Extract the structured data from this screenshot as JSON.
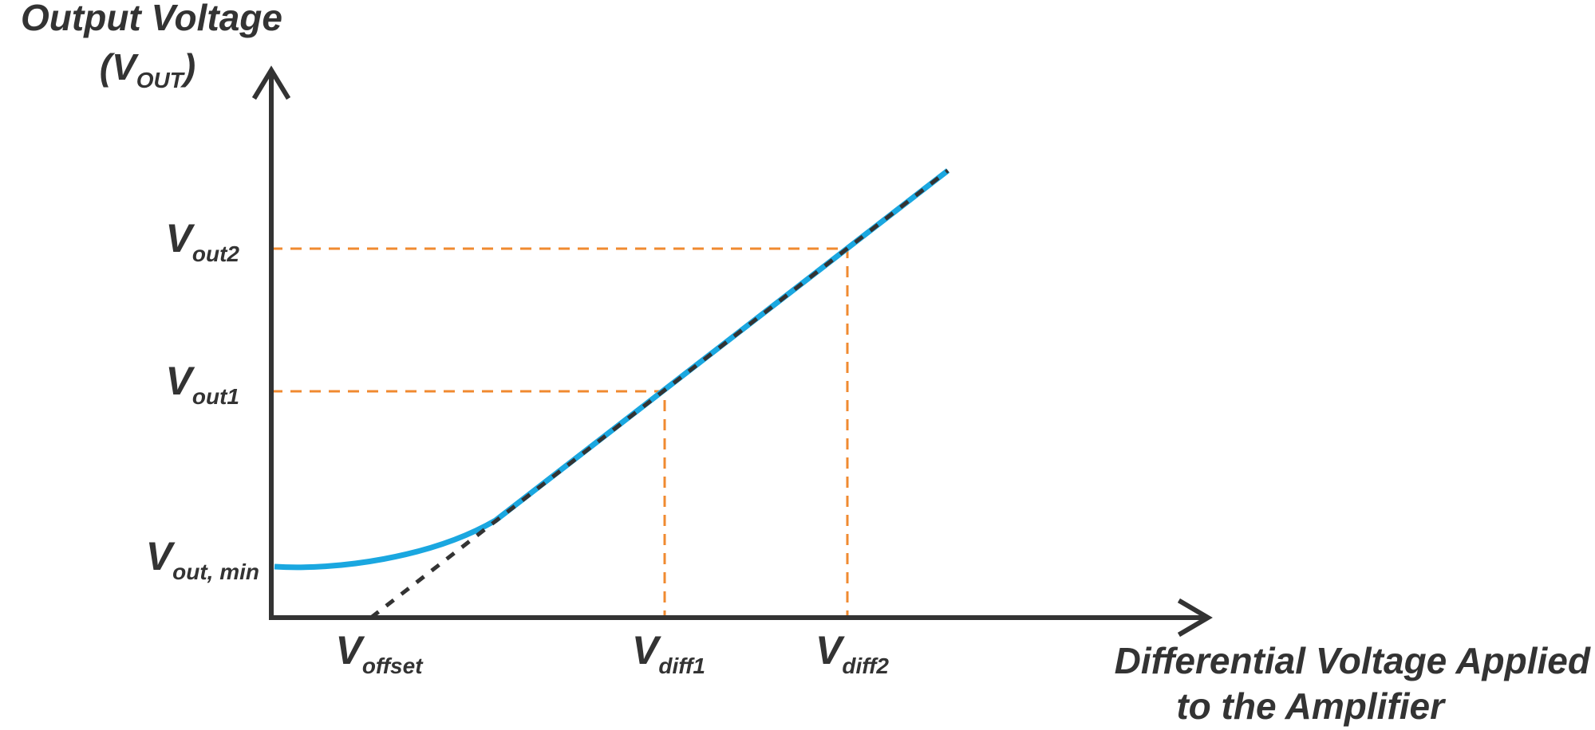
{
  "y_axis": {
    "title": {
      "line1": "Output Voltage",
      "line2": {
        "pre": "(V",
        "sub": "OUT",
        "post": ")"
      }
    },
    "labels": [
      {
        "main": "V",
        "sub": "out2"
      },
      {
        "main": "V",
        "sub": "out1"
      },
      {
        "main": "V",
        "sub": "out, min"
      }
    ]
  },
  "x_axis": {
    "title": {
      "line1": "Differential Voltage Applied",
      "line2": "to the Amplifier"
    },
    "labels": [
      {
        "main": "V",
        "sub": "offset"
      },
      {
        "main": "V",
        "sub": "diff1"
      },
      {
        "main": "V",
        "sub": "diff2"
      }
    ]
  }
}
